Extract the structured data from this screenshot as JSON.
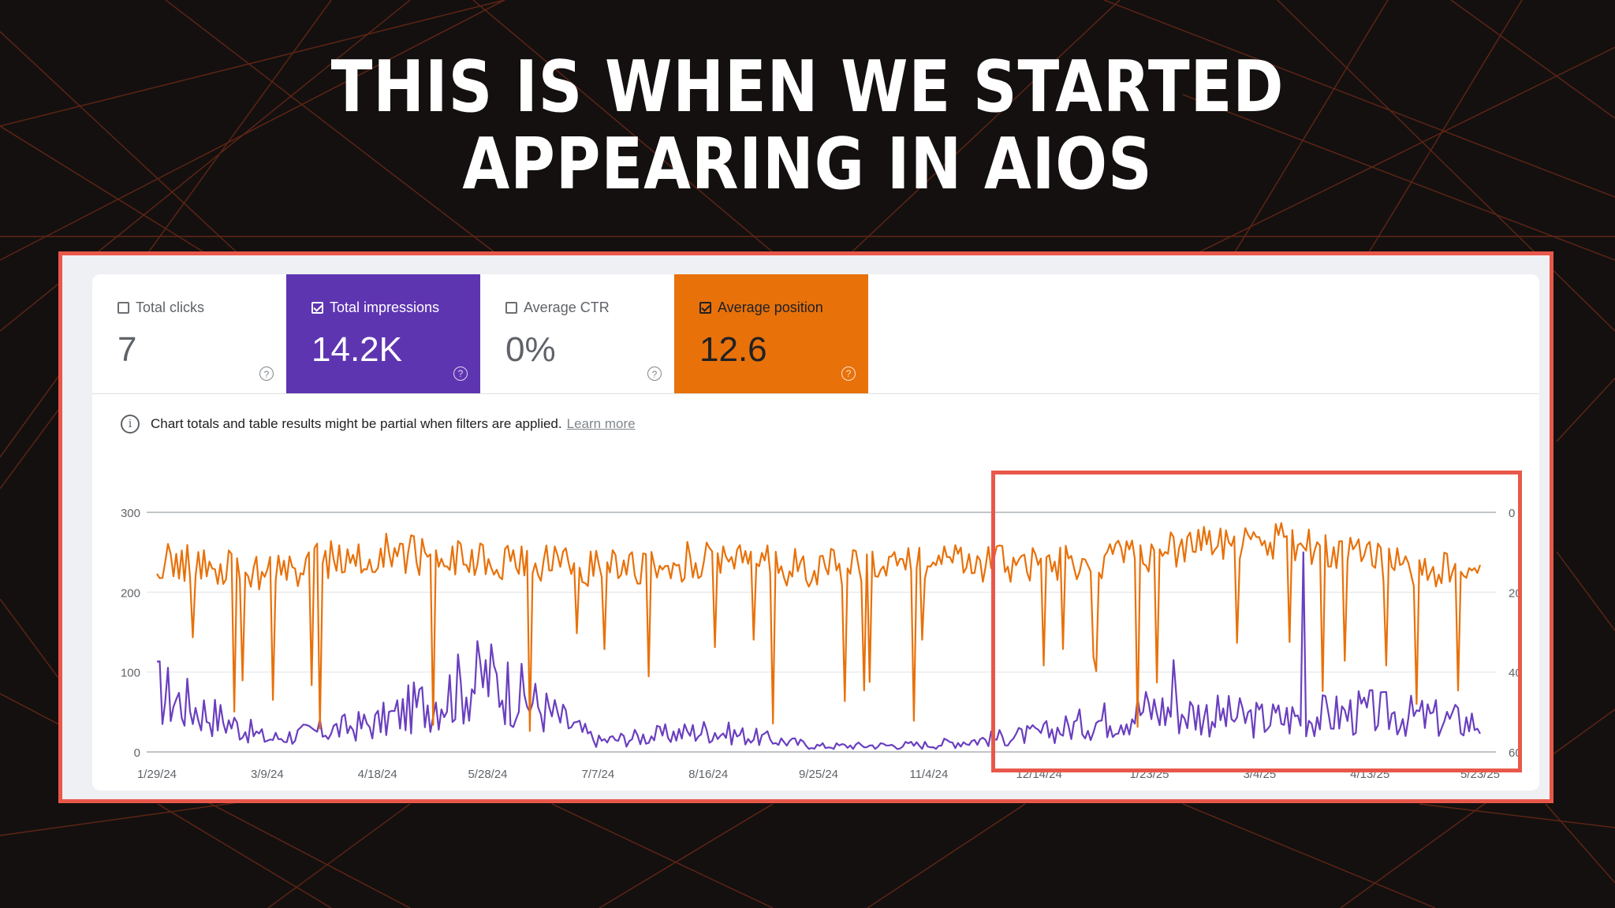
{
  "slide": {
    "title_line1": "THIS IS WHEN WE STARTED",
    "title_line2": "APPEARING IN AIOS"
  },
  "colors": {
    "impressions": "#6a3fbf",
    "position": "#e8710a",
    "frame": "#e8584a"
  },
  "metrics": [
    {
      "label": "Total clicks",
      "value": "7",
      "checked": false,
      "help_icon": "help-circle-icon"
    },
    {
      "label": "Total impressions",
      "value": "14.2K",
      "checked": true,
      "background": "#5e35b1",
      "help_icon": "help-circle-icon"
    },
    {
      "label": "Average CTR",
      "value": "0%",
      "checked": false,
      "help_icon": "help-circle-icon"
    },
    {
      "label": "Average position",
      "value": "12.6",
      "checked": true,
      "background": "#e8710a",
      "help_icon": "help-circle-icon"
    }
  ],
  "notice": {
    "icon": "info-icon",
    "text": "Chart totals and table results might be partial when filters are applied.",
    "link": "Learn more"
  },
  "chart_data": {
    "type": "line",
    "x_ticks": [
      "1/29/24",
      "3/9/24",
      "4/18/24",
      "5/28/24",
      "7/7/24",
      "8/16/24",
      "9/25/24",
      "11/4/24",
      "12/14/24",
      "1/23/25",
      "3/4/25",
      "4/13/25",
      "5/23/25"
    ],
    "y_left_ticks": [
      "300",
      "200",
      "100",
      "0"
    ],
    "y_left_lim": [
      0,
      300
    ],
    "y_right_ticks": [
      "0",
      "20",
      "40",
      "60"
    ],
    "y_right_lim": [
      0,
      60
    ],
    "y_right_inverted": true,
    "grid": true,
    "series": [
      {
        "axis": "left",
        "color": "#6a3fbf",
        "x": [
          "1/29/24",
          "3/9/24",
          "4/18/24",
          "5/28/24",
          "7/7/24",
          "8/16/24",
          "9/25/24",
          "11/4/24",
          "12/14/24",
          "1/23/25",
          "3/4/25",
          "4/13/25",
          "5/23/25"
        ],
        "values": [
          85,
          18,
          40,
          105,
          15,
          30,
          8,
          10,
          25,
          60,
          45,
          55,
          40
        ]
      },
      {
        "axis": "right",
        "color": "#e8710a",
        "x": [
          "1/29/24",
          "3/9/24",
          "4/18/24",
          "5/28/24",
          "7/7/24",
          "8/16/24",
          "9/25/24",
          "11/4/24",
          "12/14/24",
          "1/23/25",
          "3/4/25",
          "4/13/25",
          "5/23/25"
        ],
        "values": [
          12,
          15,
          10,
          12,
          14,
          12,
          14,
          12,
          14,
          10,
          6,
          12,
          16
        ]
      }
    ]
  }
}
